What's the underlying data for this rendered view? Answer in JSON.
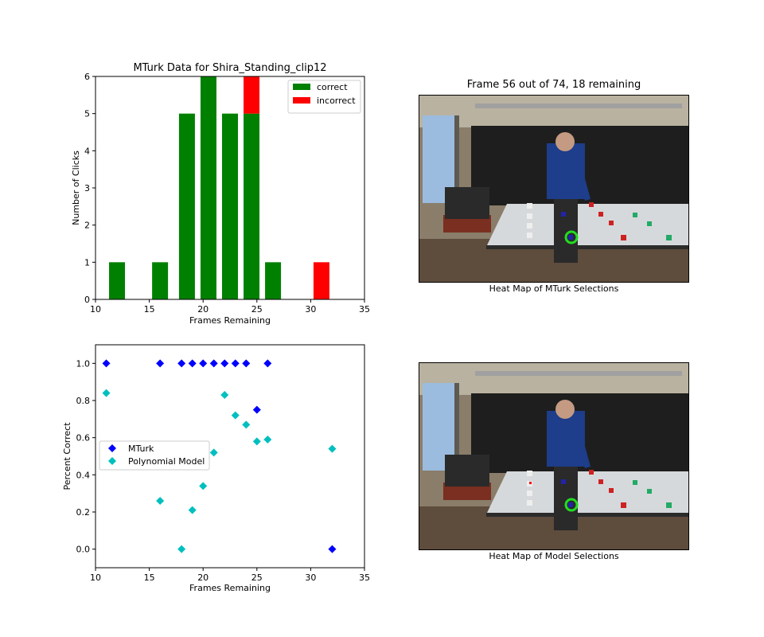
{
  "frame_panel": {
    "title": "Frame 56 out of 74, 18 remaining",
    "top_caption": "Heat Map of MTurk Selections",
    "bottom_caption": "Heat Map of Model Selections"
  },
  "colors": {
    "correct": "#008000",
    "incorrect": "#ff0000",
    "mturk": "#0000ff",
    "model": "#00bfbf",
    "target_ring": "#22dd22"
  },
  "chart_data": [
    {
      "type": "bar",
      "title": "MTurk Data for Shira_Standing_clip12",
      "xlabel": "Frames Remaining",
      "ylabel": "Number of Clicks",
      "xlim": [
        10,
        35
      ],
      "ylim": [
        0,
        6
      ],
      "xticks": [
        10,
        15,
        20,
        25,
        30,
        35
      ],
      "yticks": [
        0,
        1,
        2,
        3,
        4,
        5,
        6
      ],
      "legend_position": "top-right",
      "x": [
        12,
        16,
        18.5,
        20.5,
        22.5,
        24.5,
        26.5,
        31
      ],
      "series": [
        {
          "name": "correct",
          "values": [
            1,
            1,
            5,
            6,
            5,
            5,
            1,
            0
          ]
        },
        {
          "name": "incorrect",
          "values": [
            0,
            0,
            0,
            0,
            0,
            1,
            0,
            1
          ]
        }
      ],
      "stacked": true
    },
    {
      "type": "scatter",
      "xlabel": "Frames Remaining",
      "ylabel": "Percent Correct",
      "xlim": [
        10,
        35
      ],
      "ylim": [
        -0.1,
        1.1
      ],
      "xticks": [
        10,
        15,
        20,
        25,
        30,
        35
      ],
      "yticks": [
        0.0,
        0.2,
        0.4,
        0.6,
        0.8,
        1.0
      ],
      "ytick_labels": [
        "0.0",
        "0.2",
        "0.4",
        "0.6",
        "0.8",
        "1.0"
      ],
      "legend_position": "center-left",
      "series": [
        {
          "name": "MTurk",
          "x": [
            11,
            16,
            18,
            19,
            20,
            21,
            22,
            23,
            24,
            25,
            26,
            32
          ],
          "y": [
            1.0,
            1.0,
            1.0,
            1.0,
            1.0,
            1.0,
            1.0,
            1.0,
            1.0,
            0.75,
            1.0,
            0.0
          ]
        },
        {
          "name": "Polynomial Model",
          "x": [
            11,
            16,
            18,
            19,
            20,
            21,
            22,
            23,
            24,
            25,
            26,
            32
          ],
          "y": [
            0.84,
            0.26,
            0.0,
            0.21,
            0.34,
            0.52,
            0.83,
            0.72,
            0.67,
            0.58,
            0.59,
            0.54
          ]
        }
      ]
    }
  ]
}
